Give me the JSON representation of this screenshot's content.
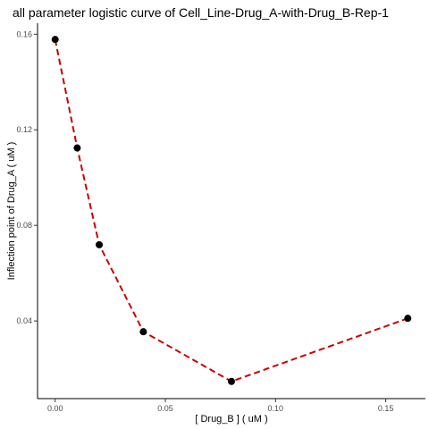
{
  "chart_data": {
    "type": "line",
    "title": "all parameter logistic curve of Cell_Line-Drug_A-with-Drug_B-Rep-1",
    "xlabel": "[ Drug_B ] ( uM )",
    "ylabel": "Inflection point of Drug_A ( uM )",
    "xlim": [
      -0.008,
      0.168
    ],
    "ylim": [
      0.0075,
      0.1646
    ],
    "x_ticks": [
      0.0,
      0.05,
      0.1,
      0.15
    ],
    "x_tick_labels": [
      "0.00",
      "0.05",
      "0.10",
      "0.15"
    ],
    "y_ticks": [
      0.04,
      0.08,
      0.12,
      0.16
    ],
    "y_tick_labels": [
      "0.04",
      "0.08",
      "0.12",
      "0.16"
    ],
    "grid": false,
    "series": [
      {
        "x": [
          0.0,
          0.01,
          0.02,
          0.04,
          0.08,
          0.16
        ],
        "y": [
          0.1578,
          0.1124,
          0.0719,
          0.0355,
          0.0147,
          0.0411
        ],
        "line_color": "#cc0000",
        "line_style": "dashed",
        "marker_color": "#000000"
      }
    ]
  }
}
